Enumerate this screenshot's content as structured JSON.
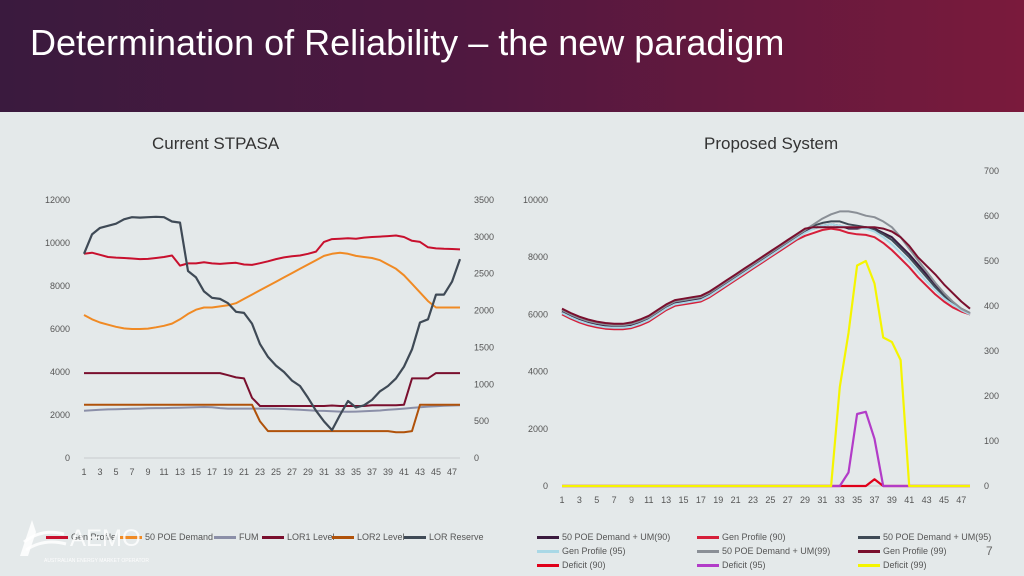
{
  "slide": {
    "title": "Determination of Reliability – the new paradigm",
    "page_number": "7",
    "logo_text": "AEMO",
    "logo_subtext": "AUSTRALIAN ENERGY MARKET OPERATOR"
  },
  "colors": {
    "gen_profile": "#c8102e",
    "poe50": "#f08a24",
    "fum": "#8b8fa8",
    "lor1": "#7a0f2e",
    "lor2": "#b0520a",
    "lor_reserve": "#3f4a56",
    "r_poe50_um90": "#3a1a3e",
    "r_gen90": "#d61f3a",
    "r_poe50_um95": "#3f4a56",
    "r_gen95": "#a9d8e6",
    "r_poe50_um99": "#8a8f96",
    "r_gen99": "#7a0f2e",
    "r_deficit90": "#e0001a",
    "r_deficit95": "#b23cc8",
    "r_deficit99": "#f5f500"
  },
  "chart_data": [
    {
      "type": "line",
      "title": "Current STPASA",
      "x": [
        1,
        2,
        3,
        4,
        5,
        6,
        7,
        8,
        9,
        10,
        11,
        12,
        13,
        14,
        15,
        16,
        17,
        18,
        19,
        20,
        21,
        22,
        23,
        24,
        25,
        26,
        27,
        28,
        29,
        30,
        31,
        32,
        33,
        34,
        35,
        36,
        37,
        38,
        39,
        40,
        41,
        42,
        43,
        44,
        45,
        46,
        47,
        48
      ],
      "xticks": [
        "1",
        "3",
        "5",
        "7",
        "9",
        "11",
        "13",
        "15",
        "17",
        "19",
        "21",
        "23",
        "25",
        "27",
        "29",
        "31",
        "33",
        "35",
        "37",
        "39",
        "41",
        "43",
        "45",
        "47"
      ],
      "ylim_left": [
        0,
        12000
      ],
      "yticks_left": [
        "0",
        "2000",
        "4000",
        "6000",
        "8000",
        "10000",
        "12000"
      ],
      "ylim_right": [
        0,
        3500
      ],
      "yticks_right": [
        "0",
        "500",
        "1000",
        "1500",
        "2000",
        "2500",
        "3000",
        "3500"
      ],
      "series": [
        {
          "name": "Gen Profile",
          "axis": "left",
          "color_key": "gen_profile",
          "values": [
            9500,
            9550,
            9450,
            9350,
            9320,
            9300,
            9280,
            9250,
            9260,
            9300,
            9350,
            9420,
            8950,
            9050,
            9050,
            9100,
            9050,
            9030,
            9060,
            9080,
            9000,
            8980,
            9060,
            9150,
            9250,
            9330,
            9380,
            9420,
            9500,
            9600,
            10050,
            10180,
            10200,
            10220,
            10200,
            10250,
            10280,
            10300,
            10320,
            10350,
            10280,
            10100,
            10050,
            9800,
            9750,
            9730,
            9720,
            9700
          ]
        },
        {
          "name": "50 POE Demand",
          "axis": "left",
          "color_key": "poe50",
          "values": [
            6650,
            6450,
            6300,
            6200,
            6100,
            6030,
            6000,
            6000,
            6020,
            6080,
            6150,
            6250,
            6450,
            6700,
            6900,
            7000,
            7000,
            7050,
            7100,
            7200,
            7400,
            7600,
            7800,
            8000,
            8200,
            8400,
            8600,
            8800,
            9000,
            9200,
            9400,
            9500,
            9550,
            9500,
            9400,
            9350,
            9300,
            9200,
            9000,
            8800,
            8500,
            8100,
            7700,
            7300,
            7000,
            7000,
            7000,
            7000
          ]
        },
        {
          "name": "FUM",
          "axis": "left",
          "color_key": "fum",
          "values": [
            2200,
            2220,
            2240,
            2260,
            2270,
            2280,
            2290,
            2300,
            2310,
            2320,
            2320,
            2330,
            2340,
            2350,
            2360,
            2370,
            2360,
            2320,
            2300,
            2300,
            2300,
            2300,
            2300,
            2300,
            2290,
            2280,
            2260,
            2240,
            2220,
            2200,
            2190,
            2170,
            2160,
            2150,
            2160,
            2170,
            2190,
            2210,
            2240,
            2270,
            2300,
            2330,
            2360,
            2390,
            2410,
            2430,
            2440,
            2450
          ]
        },
        {
          "name": "LOR1 Level",
          "axis": "left",
          "color_key": "lor1",
          "values": [
            3950,
            3950,
            3950,
            3950,
            3950,
            3950,
            3950,
            3950,
            3950,
            3950,
            3950,
            3950,
            3950,
            3950,
            3950,
            3950,
            3950,
            3950,
            3850,
            3750,
            3700,
            2800,
            2420,
            2420,
            2420,
            2420,
            2420,
            2420,
            2420,
            2420,
            2420,
            2440,
            2420,
            2420,
            2420,
            2420,
            2450,
            2450,
            2450,
            2450,
            2480,
            3700,
            3700,
            3700,
            3950,
            3950,
            3950,
            3950
          ]
        },
        {
          "name": "LOR2 Level",
          "axis": "left",
          "color_key": "lor2",
          "values": [
            2480,
            2480,
            2480,
            2480,
            2480,
            2480,
            2480,
            2480,
            2480,
            2480,
            2480,
            2480,
            2480,
            2480,
            2480,
            2480,
            2480,
            2480,
            2480,
            2480,
            2480,
            2480,
            1700,
            1250,
            1250,
            1250,
            1250,
            1250,
            1250,
            1250,
            1250,
            1250,
            1250,
            1250,
            1250,
            1250,
            1250,
            1250,
            1250,
            1200,
            1200,
            1250,
            2480,
            2480,
            2480,
            2480,
            2480,
            2480
          ]
        },
        {
          "name": "LOR Reserve",
          "axis": "left",
          "color_key": "lor_reserve",
          "values": [
            9500,
            10400,
            10700,
            10800,
            10900,
            11100,
            11200,
            11180,
            11200,
            11220,
            11200,
            11000,
            10950,
            8700,
            8400,
            7750,
            7450,
            7400,
            7200,
            6800,
            6750,
            6250,
            5300,
            4700,
            4300,
            4000,
            3600,
            3350,
            2800,
            2200,
            1700,
            1300,
            2000,
            2650,
            2350,
            2450,
            2700,
            3100,
            3350,
            3700,
            4250,
            5050,
            6300,
            6450,
            7600,
            7600,
            8200,
            9250
          ]
        }
      ]
    },
    {
      "type": "line",
      "title": "Proposed System",
      "x": [
        1,
        2,
        3,
        4,
        5,
        6,
        7,
        8,
        9,
        10,
        11,
        12,
        13,
        14,
        15,
        16,
        17,
        18,
        19,
        20,
        21,
        22,
        23,
        24,
        25,
        26,
        27,
        28,
        29,
        30,
        31,
        32,
        33,
        34,
        35,
        36,
        37,
        38,
        39,
        40,
        41,
        42,
        43,
        44,
        45,
        46,
        47,
        48
      ],
      "xticks": [
        "1",
        "3",
        "5",
        "7",
        "9",
        "11",
        "13",
        "15",
        "17",
        "19",
        "21",
        "23",
        "25",
        "27",
        "29",
        "31",
        "33",
        "35",
        "37",
        "39",
        "41",
        "43",
        "45",
        "47"
      ],
      "ylim_left": [
        0,
        10000
      ],
      "yticks_left": [
        "0",
        "2000",
        "4000",
        "6000",
        "8000",
        "10000"
      ],
      "ylim_right": [
        0,
        700
      ],
      "yticks_right": [
        "0",
        "100",
        "200",
        "300",
        "400",
        "500",
        "600",
        "700"
      ],
      "series": [
        {
          "name": "50 POE Demand + UM(90)",
          "axis": "left",
          "color_key": "r_poe50_um90",
          "values": [
            6100,
            5950,
            5820,
            5720,
            5650,
            5600,
            5570,
            5570,
            5620,
            5720,
            5850,
            6050,
            6250,
            6400,
            6450,
            6500,
            6550,
            6700,
            6900,
            7100,
            7300,
            7500,
            7700,
            7900,
            8100,
            8300,
            8500,
            8700,
            8900,
            9000,
            9100,
            9150,
            9100,
            9000,
            9000,
            9050,
            9000,
            8850,
            8700,
            8400,
            8100,
            7750,
            7400,
            7050,
            6700,
            6400,
            6150,
            6000
          ]
        },
        {
          "name": "Gen Profile (90)",
          "axis": "left",
          "color_key": "r_gen90",
          "values": [
            6000,
            5850,
            5720,
            5620,
            5550,
            5500,
            5480,
            5480,
            5520,
            5620,
            5750,
            5950,
            6150,
            6300,
            6350,
            6400,
            6450,
            6600,
            6800,
            7000,
            7200,
            7400,
            7600,
            7800,
            8000,
            8200,
            8400,
            8600,
            8750,
            8850,
            8950,
            9000,
            8950,
            8850,
            8800,
            8780,
            8700,
            8500,
            8250,
            7950,
            7650,
            7300,
            7000,
            6700,
            6450,
            6250,
            6100,
            6000
          ]
        },
        {
          "name": "50 POE Demand + UM(95)",
          "axis": "left",
          "color_key": "r_poe50_um95",
          "values": [
            6150,
            6000,
            5870,
            5770,
            5700,
            5650,
            5620,
            5620,
            5670,
            5770,
            5900,
            6100,
            6300,
            6450,
            6500,
            6550,
            6600,
            6750,
            6950,
            7150,
            7350,
            7550,
            7750,
            7950,
            8150,
            8350,
            8550,
            8750,
            8950,
            9100,
            9200,
            9250,
            9250,
            9150,
            9100,
            9050,
            8950,
            8800,
            8600,
            8300,
            8000,
            7650,
            7300,
            6950,
            6650,
            6400,
            6200,
            6050
          ]
        },
        {
          "name": "Gen Profile (95)",
          "axis": "left",
          "color_key": "r_gen95",
          "values": [
            6050,
            5900,
            5770,
            5670,
            5600,
            5550,
            5530,
            5530,
            5570,
            5670,
            5800,
            6000,
            6200,
            6350,
            6400,
            6450,
            6500,
            6650,
            6850,
            7050,
            7250,
            7450,
            7650,
            7850,
            8050,
            8250,
            8450,
            8650,
            8850,
            9000,
            9100,
            9150,
            9100,
            9050,
            9050,
            9000,
            8900,
            8700,
            8450,
            8150,
            7850,
            7500,
            7150,
            6850,
            6550,
            6350,
            6150,
            6000
          ]
        },
        {
          "name": "50 POE Demand + UM(99)",
          "axis": "left",
          "color_key": "r_poe50_um99",
          "values": [
            6150,
            6000,
            5870,
            5770,
            5700,
            5650,
            5620,
            5620,
            5670,
            5770,
            5900,
            6100,
            6300,
            6450,
            6500,
            6550,
            6600,
            6750,
            6950,
            7150,
            7350,
            7550,
            7750,
            7950,
            8150,
            8350,
            8550,
            8750,
            8950,
            9150,
            9350,
            9500,
            9600,
            9600,
            9550,
            9450,
            9400,
            9250,
            9050,
            8700,
            8300,
            7900,
            7500,
            7100,
            6750,
            6450,
            6200,
            6050
          ]
        },
        {
          "name": "Gen Profile (99)",
          "axis": "left",
          "color_key": "r_gen99",
          "values": [
            6200,
            6050,
            5920,
            5820,
            5750,
            5700,
            5670,
            5670,
            5720,
            5820,
            5950,
            6150,
            6350,
            6500,
            6550,
            6600,
            6650,
            6800,
            7000,
            7200,
            7400,
            7600,
            7800,
            8000,
            8200,
            8400,
            8600,
            8800,
            9000,
            9050,
            9050,
            9050,
            9050,
            9050,
            9050,
            9050,
            9050,
            9000,
            8900,
            8700,
            8400,
            8000,
            7700,
            7400,
            7050,
            6750,
            6450,
            6200
          ]
        },
        {
          "name": "Deficit (90)",
          "axis": "right",
          "color_key": "r_deficit90",
          "values": [
            0,
            0,
            0,
            0,
            0,
            0,
            0,
            0,
            0,
            0,
            0,
            0,
            0,
            0,
            0,
            0,
            0,
            0,
            0,
            0,
            0,
            0,
            0,
            0,
            0,
            0,
            0,
            0,
            0,
            0,
            0,
            0,
            0,
            0,
            0,
            0,
            15,
            0,
            0,
            0,
            0,
            0,
            0,
            0,
            0,
            0,
            0,
            0
          ]
        },
        {
          "name": "Deficit (95)",
          "axis": "right",
          "color_key": "r_deficit95",
          "values": [
            0,
            0,
            0,
            0,
            0,
            0,
            0,
            0,
            0,
            0,
            0,
            0,
            0,
            0,
            0,
            0,
            0,
            0,
            0,
            0,
            0,
            0,
            0,
            0,
            0,
            0,
            0,
            0,
            0,
            0,
            0,
            0,
            0,
            30,
            160,
            165,
            105,
            0,
            0,
            0,
            0,
            0,
            0,
            0,
            0,
            0,
            0,
            0
          ]
        },
        {
          "name": "Deficit (99)",
          "axis": "right",
          "color_key": "r_deficit99",
          "values": [
            0,
            0,
            0,
            0,
            0,
            0,
            0,
            0,
            0,
            0,
            0,
            0,
            0,
            0,
            0,
            0,
            0,
            0,
            0,
            0,
            0,
            0,
            0,
            0,
            0,
            0,
            0,
            0,
            0,
            0,
            0,
            0,
            220,
            340,
            490,
            500,
            450,
            330,
            320,
            280,
            0,
            0,
            0,
            0,
            0,
            0,
            0,
            0
          ]
        }
      ]
    }
  ]
}
